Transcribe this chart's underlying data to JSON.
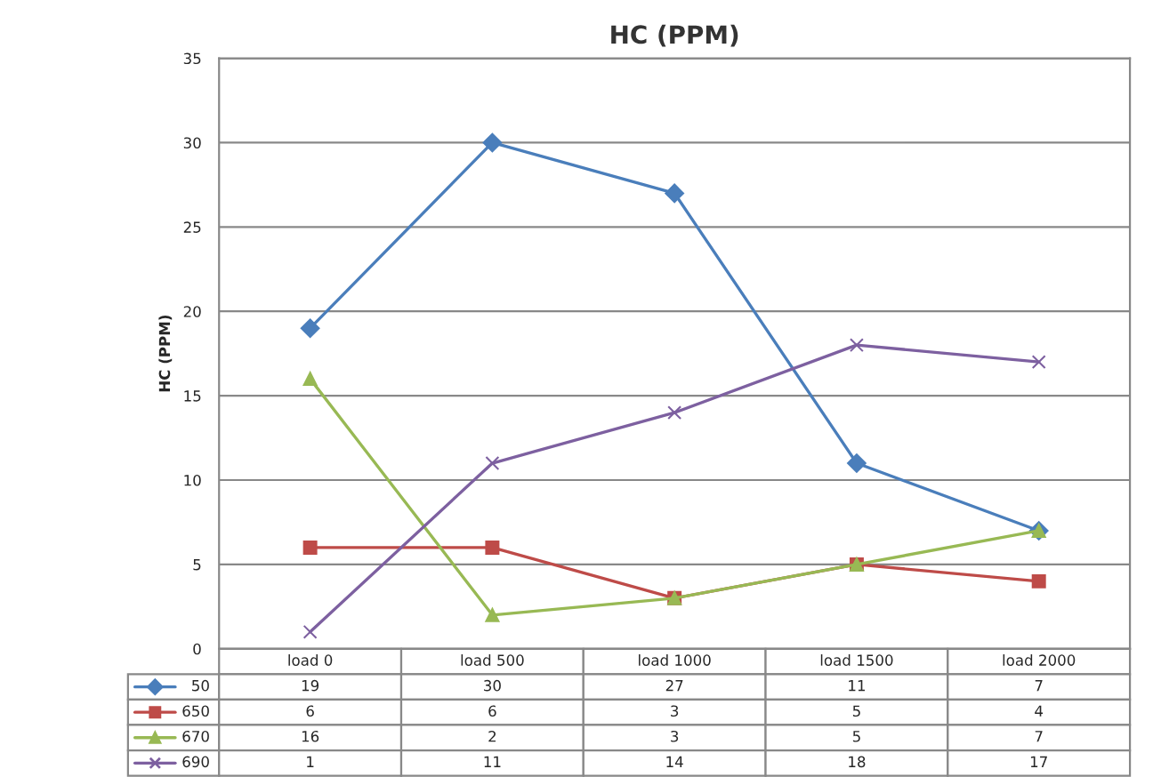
{
  "chart_data": {
    "type": "line",
    "title": "HC (PPM)",
    "ylabel": "HC (PPM)",
    "categories": [
      "load 0",
      "load 500",
      "load 1000",
      "load 1500",
      "load 2000"
    ],
    "series": [
      {
        "name": "50",
        "color": "#4a7ebb",
        "marker": "diamond",
        "values": [
          19,
          30,
          27,
          11,
          7
        ]
      },
      {
        "name": "650",
        "color": "#be4b48",
        "marker": "square",
        "values": [
          6,
          6,
          3,
          5,
          4
        ]
      },
      {
        "name": "670",
        "color": "#98b954",
        "marker": "triangle",
        "values": [
          16,
          2,
          3,
          5,
          7
        ]
      },
      {
        "name": "690",
        "color": "#7d60a0",
        "marker": "cross",
        "values": [
          1,
          11,
          14,
          18,
          17
        ]
      }
    ],
    "ylim": [
      0,
      35
    ],
    "yticks": [
      0,
      5,
      10,
      15,
      20,
      25,
      30,
      35
    ],
    "grid": "y",
    "data_labels": true,
    "legend": "bottom"
  }
}
